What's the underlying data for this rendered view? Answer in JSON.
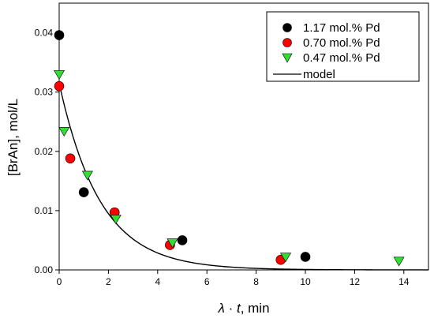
{
  "chart_data": {
    "type": "scatter",
    "xlabel_symbol": "λ",
    "xlabel_op": " · ",
    "xlabel_var": "t",
    "xlabel_unit": ", min",
    "ylabel": "[BrAn], mol/L",
    "xlim": [
      0,
      15
    ],
    "ylim": [
      0,
      0.045
    ],
    "xticks": [
      0,
      2,
      4,
      6,
      8,
      10,
      12,
      14
    ],
    "yticks": [
      0.0,
      0.01,
      0.02,
      0.03,
      0.04
    ],
    "ytick_labels": [
      "0.00",
      "0.01",
      "0.02",
      "0.03",
      "0.04"
    ],
    "grid": false,
    "legend_position": "top-right",
    "series": [
      {
        "name": "1.17 mol.% Pd",
        "marker": "circle",
        "color": "#000000",
        "points": [
          {
            "x": 0.0,
            "y": 0.0396
          },
          {
            "x": 1.0,
            "y": 0.0131
          },
          {
            "x": 5.0,
            "y": 0.005
          },
          {
            "x": 10.0,
            "y": 0.0022
          }
        ]
      },
      {
        "name": "0.70 mol.% Pd",
        "marker": "circle",
        "color": "#ff0000",
        "points": [
          {
            "x": 0.0,
            "y": 0.031
          },
          {
            "x": 0.45,
            "y": 0.0188
          },
          {
            "x": 2.25,
            "y": 0.0097
          },
          {
            "x": 4.5,
            "y": 0.0042
          },
          {
            "x": 9.0,
            "y": 0.0017
          }
        ]
      },
      {
        "name": "0.47 mol.% Pd",
        "marker": "triangle-down",
        "color": "#33dd33",
        "points": [
          {
            "x": 0.0,
            "y": 0.033
          },
          {
            "x": 0.2,
            "y": 0.0234
          },
          {
            "x": 1.15,
            "y": 0.016
          },
          {
            "x": 2.3,
            "y": 0.0086
          },
          {
            "x": 4.6,
            "y": 0.0046
          },
          {
            "x": 9.2,
            "y": 0.0022
          },
          {
            "x": 13.8,
            "y": 0.0015
          }
        ]
      },
      {
        "name": "model",
        "type": "line",
        "color": "#000000",
        "function": "y = 0.0315 * exp(-0.6 * x)",
        "x_range": [
          0,
          15
        ],
        "params": {
          "a": 0.0315,
          "k": 0.6
        }
      }
    ]
  }
}
